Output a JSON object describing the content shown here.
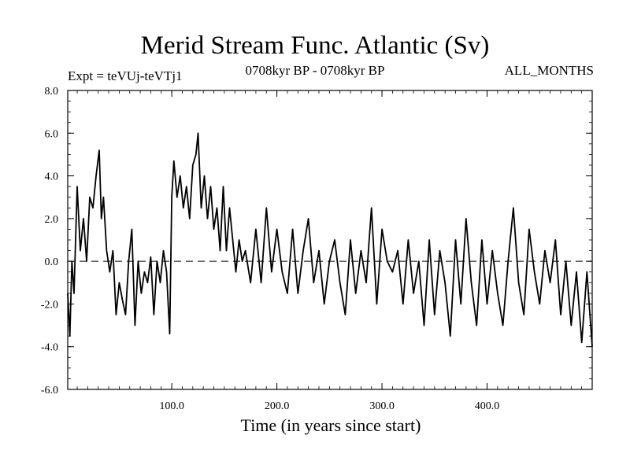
{
  "chart_data": {
    "type": "line",
    "title": "Merid Stream Func. Atlantic (Sv)",
    "subtitle_left": "Expt = teVUj-teVTj1",
    "subtitle_center": "0708kyr BP - 0708kyr BP",
    "subtitle_right": "ALL_MONTHS",
    "xlabel": "Time (in years since start)",
    "ylabel": "",
    "xlim": [
      1,
      500
    ],
    "ylim": [
      -6.0,
      8.0
    ],
    "xticks": [
      100,
      200,
      300,
      400
    ],
    "xtick_labels": [
      "100.0",
      "200.0",
      "300.0",
      "400.0"
    ],
    "yticks": [
      -6,
      -4,
      -2,
      0,
      2,
      4,
      6,
      8
    ],
    "ytick_labels": [
      "-6.0",
      "-4.0",
      "-2.0",
      "0.0",
      "2.0",
      "4.0",
      "6.0",
      "8.0"
    ],
    "reference_line": 0.0,
    "series": [
      {
        "name": "Merid Stream Func. Atlantic",
        "x": [
          1,
          3,
          5,
          7,
          10,
          13,
          16,
          19,
          22,
          25,
          28,
          31,
          33,
          35,
          38,
          41,
          44,
          47,
          50,
          53,
          56,
          59,
          62,
          65,
          68,
          71,
          74,
          77,
          80,
          83,
          86,
          89,
          92,
          95,
          98,
          100,
          102,
          105,
          108,
          111,
          114,
          117,
          120,
          123,
          125,
          128,
          131,
          134,
          137,
          140,
          143,
          146,
          149,
          152,
          155,
          158,
          161,
          164,
          167,
          170,
          175,
          180,
          185,
          190,
          195,
          200,
          205,
          210,
          215,
          220,
          225,
          230,
          235,
          240,
          245,
          250,
          255,
          260,
          265,
          270,
          275,
          280,
          285,
          290,
          295,
          300,
          305,
          310,
          315,
          320,
          325,
          330,
          335,
          340,
          345,
          350,
          355,
          360,
          365,
          370,
          375,
          380,
          385,
          390,
          395,
          400,
          405,
          410,
          415,
          420,
          425,
          430,
          435,
          440,
          445,
          450,
          455,
          460,
          465,
          470,
          475,
          480,
          485,
          490,
          495,
          500
        ],
        "values": [
          -1.5,
          -3.5,
          0.0,
          -1.5,
          3.5,
          0.5,
          2.0,
          0.0,
          3.0,
          2.5,
          4.0,
          5.2,
          2.0,
          3.0,
          0.5,
          -0.5,
          0.5,
          -2.5,
          -1.0,
          -1.8,
          -2.5,
          0.0,
          1.5,
          -3.0,
          0.0,
          -1.5,
          -0.5,
          -1.0,
          0.2,
          -2.5,
          0.0,
          -1.0,
          0.5,
          -0.5,
          -3.4,
          3.0,
          4.7,
          3.0,
          4.0,
          2.5,
          3.5,
          2.0,
          4.5,
          5.0,
          6.0,
          2.5,
          4.0,
          2.0,
          3.5,
          1.5,
          2.5,
          0.5,
          3.5,
          0.5,
          2.5,
          1.0,
          -0.5,
          1.0,
          0.0,
          0.5,
          -1.0,
          1.5,
          -1.0,
          2.5,
          -0.5,
          1.5,
          -0.5,
          -1.5,
          1.5,
          -1.5,
          0.5,
          2.0,
          -1.0,
          0.5,
          -2.0,
          0.0,
          1.0,
          -1.0,
          -2.5,
          1.0,
          -1.5,
          0.5,
          -1.0,
          2.5,
          -2.0,
          1.5,
          0.0,
          -0.5,
          0.5,
          -2.0,
          1.0,
          -1.5,
          0.0,
          -3.0,
          1.0,
          -2.5,
          0.5,
          -1.0,
          -3.5,
          1.0,
          -2.0,
          2.0,
          -1.0,
          -3.0,
          1.0,
          -2.0,
          0.5,
          -1.5,
          -3.0,
          0.0,
          2.5,
          -1.0,
          -2.5,
          1.5,
          -0.5,
          -2.0,
          0.5,
          -1.0,
          1.0,
          -2.5,
          0.0,
          -3.0,
          -0.5,
          -3.8,
          -0.5,
          -4.0
        ]
      }
    ]
  }
}
